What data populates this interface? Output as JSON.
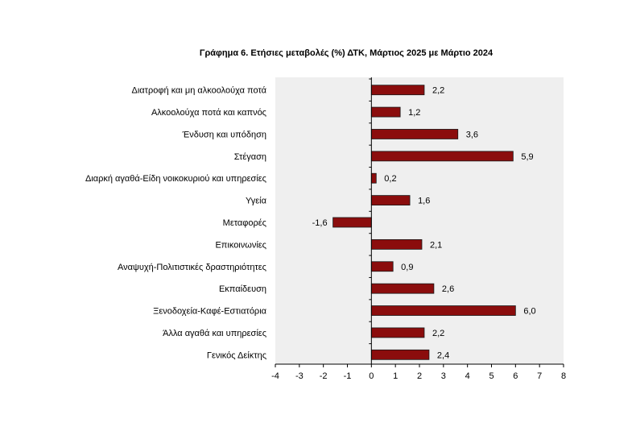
{
  "chart_data": {
    "type": "bar",
    "orientation": "horizontal",
    "title": "Γράφημα 6. Ετήσιες μεταβολές (%) ΔΤΚ, Μάρτιος 2025 με Μάρτιο 2024",
    "categories": [
      "Διατροφή και μη αλκοολούχα ποτά",
      "Αλκοολούχα ποτά και καπνός",
      "Ένδυση και υπόδηση",
      "Στέγαση",
      "Διαρκή αγαθά-Είδη νοικοκυριού και υπηρεσίες",
      "Υγεία",
      "Μεταφορές",
      "Επικοινωνίες",
      "Αναψυχή-Πολιτιστικές δραστηριότητες",
      "Εκπαίδευση",
      "Ξενοδοχεία-Καφέ-Εστιατόρια",
      "Άλλα αγαθά και υπηρεσίες",
      "Γενικός Δείκτης"
    ],
    "values": [
      2.2,
      1.2,
      3.6,
      5.9,
      0.2,
      1.6,
      -1.6,
      2.1,
      0.9,
      2.6,
      6.0,
      2.2,
      2.4
    ],
    "value_labels": [
      "2,2",
      "1,2",
      "3,6",
      "5,9",
      "0,2",
      "1,6",
      "-1,6",
      "2,1",
      "0,9",
      "2,6",
      "6,0",
      "2,2",
      "2,4"
    ],
    "xlim": [
      -4,
      8
    ],
    "x_ticks": [
      "-4",
      "-3",
      "-2",
      "-1",
      "0",
      "1",
      "2",
      "3",
      "4",
      "5",
      "6",
      "7",
      "8"
    ],
    "bar_color": "#8b0d0d",
    "plot_background": "#efefef",
    "grid": false,
    "legend": "none"
  }
}
